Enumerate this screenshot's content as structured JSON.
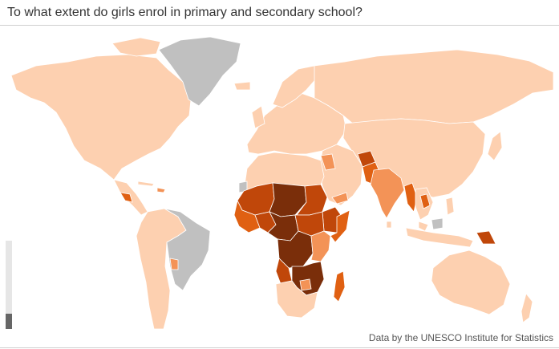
{
  "title": "To what extent do girls enrol in primary and secondary school?",
  "source": "Data by the UNESCO Institute for Statistics",
  "legend_level": 0.17,
  "colors": {
    "light": "#fdd0b0",
    "medium": "#f39357",
    "dark": "#e06012",
    "darker": "#c0470a",
    "darkest": "#7a2e0a",
    "no_data": "#c0c0c0",
    "ocean": "#ffffff",
    "legend_track": "#e6e6e6",
    "legend_fill": "#666666"
  }
}
